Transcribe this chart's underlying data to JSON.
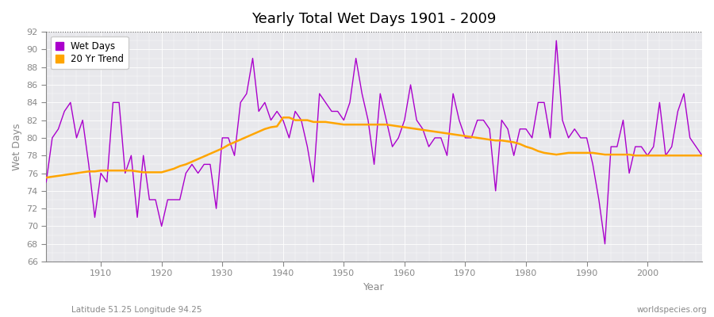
{
  "title": "Yearly Total Wet Days 1901 - 2009",
  "xlabel": "Year",
  "ylabel": "Wet Days",
  "lat_lon_label": "Latitude 51.25 Longitude 94.25",
  "watermark": "worldspecies.org",
  "ylim": [
    66,
    92
  ],
  "xlim": [
    1901,
    2009
  ],
  "yticks": [
    66,
    68,
    70,
    72,
    74,
    76,
    78,
    80,
    82,
    84,
    86,
    88,
    90,
    92
  ],
  "xticks": [
    1910,
    1920,
    1930,
    1940,
    1950,
    1960,
    1970,
    1980,
    1990,
    2000
  ],
  "wet_days_color": "#AA00CC",
  "trend_color": "#FFA500",
  "fig_background": "#FFFFFF",
  "plot_background": "#E8E8EC",
  "grid_color": "#FFFFFF",
  "tick_color": "#888888",
  "wet_days": {
    "1901": 75,
    "1902": 80,
    "1903": 81,
    "1904": 83,
    "1905": 84,
    "1906": 80,
    "1907": 82,
    "1908": 77,
    "1909": 71,
    "1910": 76,
    "1911": 75,
    "1912": 84,
    "1913": 84,
    "1914": 76,
    "1915": 78,
    "1916": 71,
    "1917": 78,
    "1918": 73,
    "1919": 73,
    "1920": 70,
    "1921": 73,
    "1922": 73,
    "1923": 73,
    "1924": 76,
    "1925": 77,
    "1926": 76,
    "1927": 77,
    "1928": 77,
    "1929": 72,
    "1930": 80,
    "1931": 80,
    "1932": 78,
    "1933": 84,
    "1934": 85,
    "1935": 89,
    "1936": 83,
    "1937": 84,
    "1938": 82,
    "1939": 83,
    "1940": 82,
    "1941": 80,
    "1942": 83,
    "1943": 82,
    "1944": 79,
    "1945": 75,
    "1946": 85,
    "1947": 84,
    "1948": 83,
    "1949": 83,
    "1950": 82,
    "1951": 84,
    "1952": 89,
    "1953": 85,
    "1954": 82,
    "1955": 77,
    "1956": 85,
    "1957": 82,
    "1958": 79,
    "1959": 80,
    "1960": 82,
    "1961": 86,
    "1962": 82,
    "1963": 81,
    "1964": 79,
    "1965": 80,
    "1966": 80,
    "1967": 78,
    "1968": 85,
    "1969": 82,
    "1970": 80,
    "1971": 80,
    "1972": 82,
    "1973": 82,
    "1974": 81,
    "1975": 74,
    "1976": 82,
    "1977": 81,
    "1978": 78,
    "1979": 81,
    "1980": 81,
    "1981": 80,
    "1982": 84,
    "1983": 84,
    "1984": 80,
    "1985": 91,
    "1986": 82,
    "1987": 80,
    "1988": 81,
    "1989": 80,
    "1990": 80,
    "1991": 77,
    "1992": 73,
    "1993": 68,
    "1994": 79,
    "1995": 79,
    "1996": 82,
    "1997": 76,
    "1998": 79,
    "1999": 79,
    "2000": 78,
    "2001": 79,
    "2002": 84,
    "2003": 78,
    "2004": 79,
    "2005": 83,
    "2006": 85,
    "2007": 80,
    "2008": 79,
    "2009": 78
  },
  "trend": {
    "1901": 75.5,
    "1902": 75.6,
    "1903": 75.7,
    "1904": 75.8,
    "1905": 75.9,
    "1906": 76.0,
    "1907": 76.1,
    "1908": 76.2,
    "1909": 76.2,
    "1910": 76.3,
    "1911": 76.3,
    "1912": 76.3,
    "1913": 76.3,
    "1914": 76.3,
    "1915": 76.3,
    "1916": 76.2,
    "1917": 76.1,
    "1918": 76.1,
    "1919": 76.1,
    "1920": 76.1,
    "1921": 76.3,
    "1922": 76.5,
    "1923": 76.8,
    "1924": 77.0,
    "1925": 77.3,
    "1926": 77.6,
    "1927": 77.9,
    "1928": 78.2,
    "1929": 78.5,
    "1930": 78.8,
    "1931": 79.2,
    "1932": 79.5,
    "1933": 79.8,
    "1934": 80.1,
    "1935": 80.4,
    "1936": 80.7,
    "1937": 81.0,
    "1938": 81.2,
    "1939": 81.3,
    "1940": 82.3,
    "1941": 82.3,
    "1942": 82.0,
    "1943": 82.0,
    "1944": 82.0,
    "1945": 81.8,
    "1946": 81.8,
    "1947": 81.8,
    "1948": 81.7,
    "1949": 81.6,
    "1950": 81.5,
    "1951": 81.5,
    "1952": 81.5,
    "1953": 81.5,
    "1954": 81.5,
    "1955": 81.5,
    "1956": 81.5,
    "1957": 81.5,
    "1958": 81.4,
    "1959": 81.3,
    "1960": 81.2,
    "1961": 81.1,
    "1962": 81.0,
    "1963": 80.9,
    "1964": 80.8,
    "1965": 80.7,
    "1966": 80.6,
    "1967": 80.5,
    "1968": 80.4,
    "1969": 80.3,
    "1970": 80.2,
    "1971": 80.1,
    "1972": 80.0,
    "1973": 79.9,
    "1974": 79.8,
    "1975": 79.7,
    "1976": 79.7,
    "1977": 79.6,
    "1978": 79.5,
    "1979": 79.3,
    "1980": 79.0,
    "1981": 78.8,
    "1982": 78.5,
    "1983": 78.3,
    "1984": 78.2,
    "1985": 78.1,
    "1986": 78.2,
    "1987": 78.3,
    "1988": 78.3,
    "1989": 78.3,
    "1990": 78.3,
    "1991": 78.3,
    "1992": 78.2,
    "1993": 78.1,
    "1994": 78.1,
    "1995": 78.1,
    "1996": 78.1,
    "1997": 78.1,
    "1998": 78.0,
    "1999": 78.0,
    "2000": 78.0,
    "2001": 78.0,
    "2002": 78.0,
    "2003": 78.0,
    "2004": 78.0,
    "2005": 78.0,
    "2006": 78.0,
    "2007": 78.0,
    "2008": 78.0,
    "2009": 78.0
  }
}
